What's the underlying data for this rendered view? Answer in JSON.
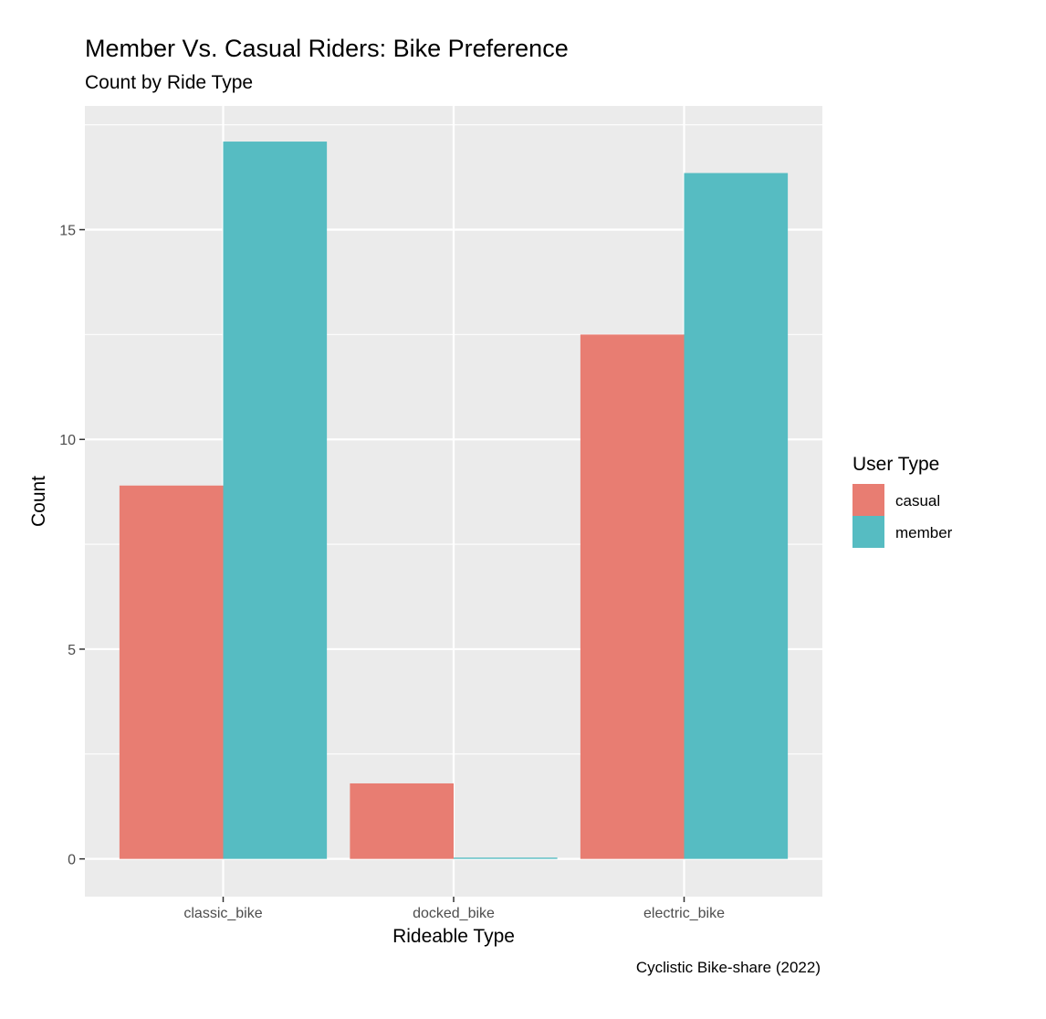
{
  "chart_data": {
    "type": "bar",
    "title": "Member Vs. Casual Riders: Bike Preference",
    "subtitle": "Count by Ride Type",
    "xlabel": "Rideable Type",
    "ylabel": "Count",
    "caption": "Cyclistic Bike-share (2022)",
    "categories": [
      "classic_bike",
      "docked_bike",
      "electric_bike"
    ],
    "series": [
      {
        "name": "casual",
        "color": "#E87D72",
        "values": [
          8.9,
          1.8,
          12.5
        ]
      },
      {
        "name": "member",
        "color": "#56BCC2",
        "values": [
          17.1,
          0.03,
          16.35
        ]
      }
    ],
    "yticks": [
      0,
      5,
      10,
      15
    ],
    "ytick_labels": [
      "0",
      "5",
      "10",
      "15"
    ],
    "ylim": [
      -0.9,
      17.95
    ],
    "grid": true,
    "legend": {
      "title": "User Type",
      "position": "right"
    },
    "panel_color": "#EBEBEB",
    "grid_color": "#FFFFFF"
  }
}
